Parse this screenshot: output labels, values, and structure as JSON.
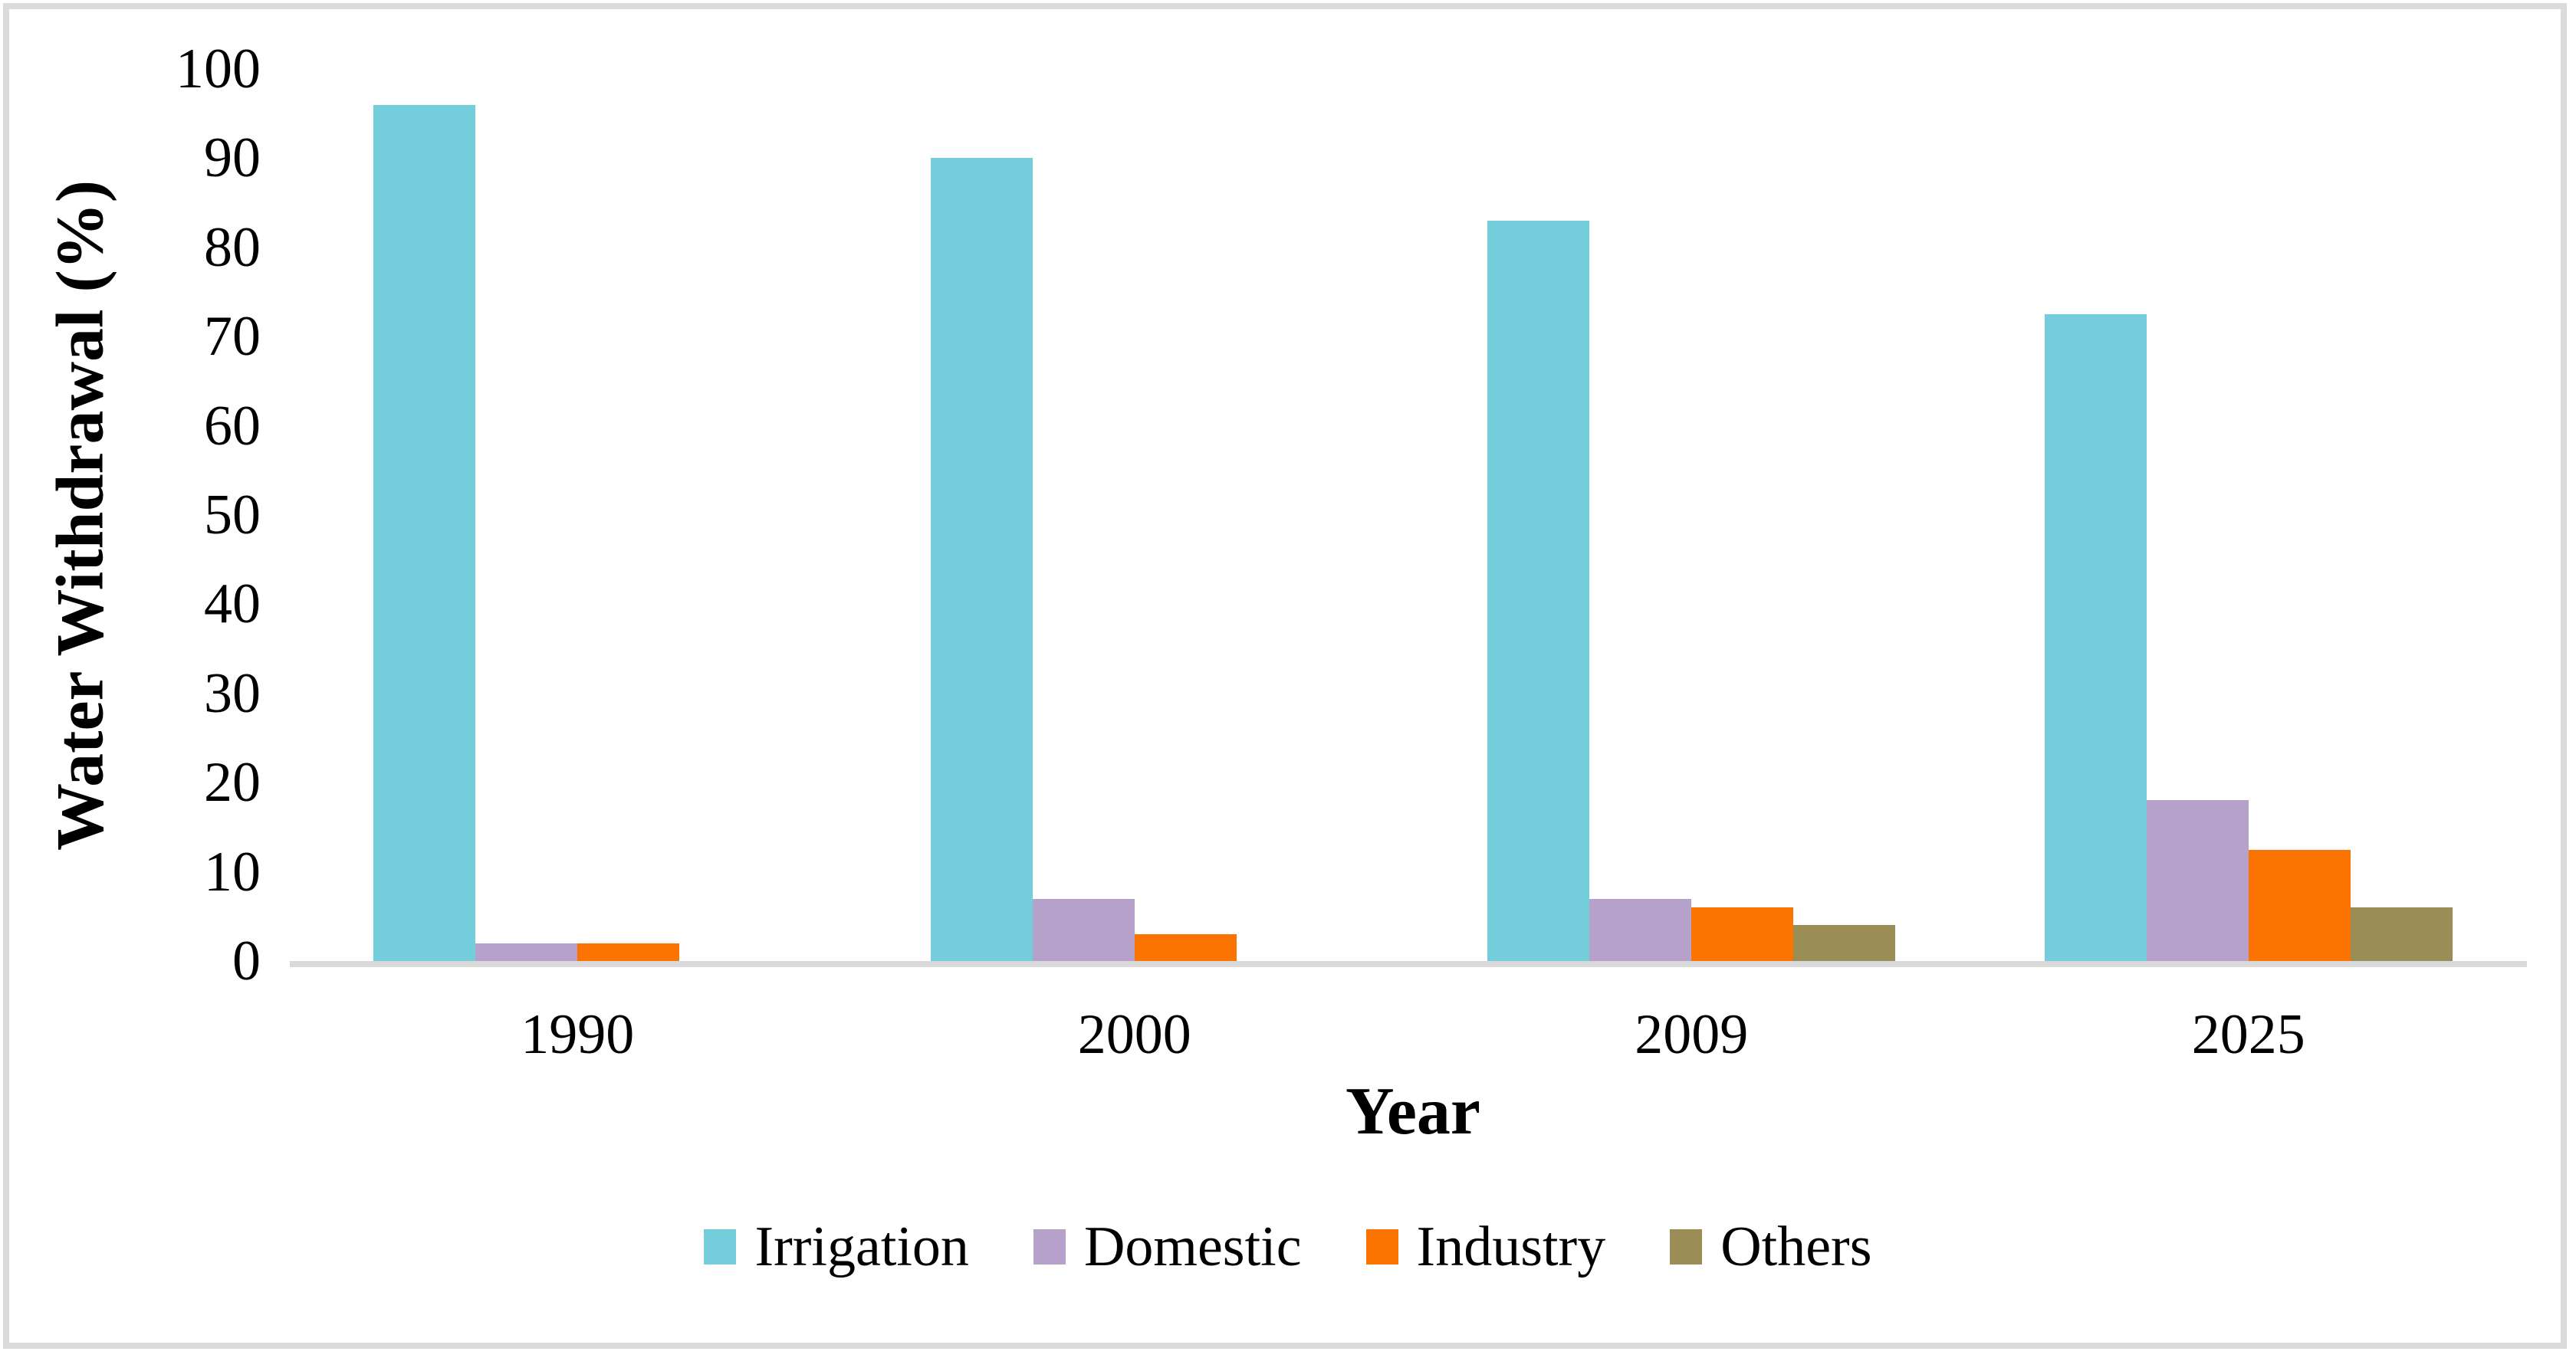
{
  "chart_data": {
    "type": "bar",
    "title": "",
    "xlabel": "Year",
    "ylabel": "Water Withdrawal (%)",
    "categories": [
      "1990",
      "2000",
      "2009",
      "2025"
    ],
    "series": [
      {
        "name": "Irrigation",
        "color": "#74CDDB",
        "values": [
          96,
          90,
          83,
          72.5
        ]
      },
      {
        "name": "Domestic",
        "color": "#B5A1C9",
        "values": [
          2,
          7,
          7,
          18
        ]
      },
      {
        "name": "Industry",
        "color": "#FB7300",
        "values": [
          2,
          3,
          6,
          12.5
        ]
      },
      {
        "name": "Others",
        "color": "#9A8D55",
        "values": [
          null,
          null,
          4,
          6
        ]
      }
    ],
    "ylim": [
      0,
      100
    ],
    "yticks": [
      0,
      10,
      20,
      30,
      40,
      50,
      60,
      70,
      80,
      90,
      100
    ],
    "grid": false,
    "legend_position": "bottom"
  },
  "colors": {
    "background": "#FFFFFF",
    "axis_line": "#D9D9D9",
    "frame_border": "#DBDBDB",
    "text": "#000000"
  }
}
